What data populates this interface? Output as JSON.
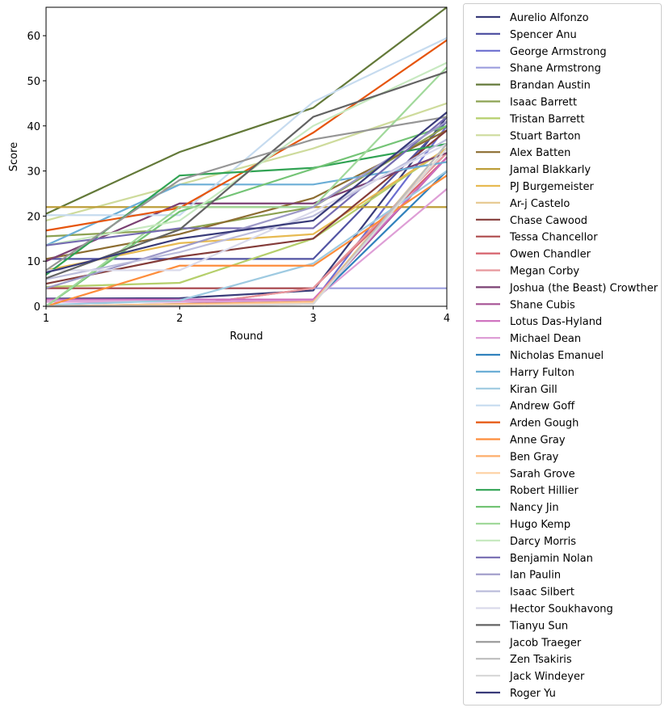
{
  "chart_data": {
    "type": "line",
    "xlabel": "Round",
    "ylabel": "Score",
    "xlim": [
      1,
      4
    ],
    "ylim": [
      0,
      66.3
    ],
    "x": [
      1,
      2,
      3,
      4
    ],
    "xticks": [
      "1",
      "2",
      "3",
      "4"
    ],
    "yticks": [
      "0",
      "10",
      "20",
      "30",
      "40",
      "50",
      "60"
    ],
    "grid": false,
    "legend_placement": "outside-right",
    "series": [
      {
        "name": "Aurelio Alfonzo",
        "color": "#393b79",
        "values": [
          1.7,
          1.8,
          3.5,
          42
        ]
      },
      {
        "name": "Spencer Anu",
        "color": "#5254a3",
        "values": [
          10.5,
          10.5,
          10.5,
          41
        ]
      },
      {
        "name": "George Armstrong",
        "color": "#6b6ecf",
        "values": [
          0,
          0,
          1,
          40
        ]
      },
      {
        "name": "Shane Armstrong",
        "color": "#9c9ede",
        "values": [
          4,
          4,
          4,
          4
        ]
      },
      {
        "name": "Brandan Austin",
        "color": "#637939",
        "values": [
          20.5,
          34.2,
          44,
          66.3
        ]
      },
      {
        "name": "Isaac Barrett",
        "color": "#8ca252",
        "values": [
          15.5,
          17,
          22,
          40
        ]
      },
      {
        "name": "Tristan Barrett",
        "color": "#b5cf6b",
        "values": [
          4.3,
          5.2,
          15,
          35
        ]
      },
      {
        "name": "Stuart Barton",
        "color": "#cedb9c",
        "values": [
          19,
          27,
          35,
          45
        ]
      },
      {
        "name": "Alex Batten",
        "color": "#8c6d31",
        "values": [
          10.5,
          16,
          24,
          39
        ]
      },
      {
        "name": "Jamal Blakkarly",
        "color": "#bd9e39",
        "values": [
          22,
          22,
          22,
          22
        ]
      },
      {
        "name": "PJ Burgemeister",
        "color": "#e7ba52",
        "values": [
          8,
          14,
          16,
          35
        ]
      },
      {
        "name": "Ar-j Castelo",
        "color": "#e7cb94",
        "values": [
          0,
          0.5,
          1,
          36
        ]
      },
      {
        "name": "Chase Cawood",
        "color": "#843c39",
        "values": [
          5,
          11,
          15,
          39
        ]
      },
      {
        "name": "Tessa Chancellor",
        "color": "#ad494a",
        "values": [
          4,
          4,
          4,
          34
        ]
      },
      {
        "name": "Owen Chandler",
        "color": "#d6616b",
        "values": [
          0,
          0,
          4,
          33
        ]
      },
      {
        "name": "Megan Corby",
        "color": "#e7969c",
        "values": [
          0,
          0,
          4,
          34
        ]
      },
      {
        "name": "Joshua (the Beast) Crowther",
        "color": "#7b4173",
        "values": [
          10,
          22.8,
          22.8,
          34
        ]
      },
      {
        "name": "Shane Cubis",
        "color": "#a55194",
        "values": [
          1,
          1,
          1,
          33
        ]
      },
      {
        "name": "Lotus Das-Hyland",
        "color": "#ce6dbd",
        "values": [
          1.5,
          1.5,
          1.5,
          33
        ]
      },
      {
        "name": "Michael Dean",
        "color": "#de9ed6",
        "values": [
          1,
          1,
          1.2,
          26
        ]
      },
      {
        "name": "Nicholas Emanuel",
        "color": "#3182bd",
        "values": [
          0,
          0.5,
          1,
          30
        ]
      },
      {
        "name": "Harry Fulton",
        "color": "#6baed6",
        "values": [
          13.5,
          27,
          27,
          32
        ]
      },
      {
        "name": "Kiran Gill",
        "color": "#9ecae1",
        "values": [
          0.3,
          1.3,
          9.5,
          30
        ]
      },
      {
        "name": "Andrew Goff",
        "color": "#c6dbef",
        "values": [
          20.2,
          20.2,
          45.3,
          59.5
        ]
      },
      {
        "name": "Arden Gough",
        "color": "#e6550d",
        "values": [
          16.8,
          21.8,
          38.5,
          59
        ]
      },
      {
        "name": "Anne Gray",
        "color": "#fd8d3c",
        "values": [
          0,
          9,
          9,
          29
        ]
      },
      {
        "name": "Ben Gray",
        "color": "#fdae6b",
        "values": [
          0,
          0.5,
          1,
          35
        ]
      },
      {
        "name": "Sarah Grove",
        "color": "#fdd0a2",
        "values": [
          0,
          0.3,
          0.8,
          35
        ]
      },
      {
        "name": "Robert Hillier",
        "color": "#31a354",
        "values": [
          7,
          29,
          30.7,
          36
        ]
      },
      {
        "name": "Nancy Jin",
        "color": "#74c476",
        "values": [
          0,
          21,
          30.5,
          40
        ]
      },
      {
        "name": "Hugo Kemp",
        "color": "#a1d99b",
        "values": [
          0,
          22,
          22,
          53
        ]
      },
      {
        "name": "Darcy Morris",
        "color": "#c7e9c0",
        "values": [
          13.5,
          19,
          40,
          54
        ]
      },
      {
        "name": "Benjamin Nolan",
        "color": "#756bb1",
        "values": [
          13.5,
          17.3,
          17.3,
          42
        ]
      },
      {
        "name": "Ian Paulin",
        "color": "#9e9ac8",
        "values": [
          4,
          13,
          22,
          41
        ]
      },
      {
        "name": "Isaac Silbert",
        "color": "#bcbddc",
        "values": [
          6,
          12,
          20,
          37
        ]
      },
      {
        "name": "Hector Soukhavong",
        "color": "#dadaeb",
        "values": [
          8,
          8,
          21,
          36
        ]
      },
      {
        "name": "Tianyu Sun",
        "color": "#636363",
        "values": [
          6.2,
          17,
          42,
          52
        ]
      },
      {
        "name": "Jacob Traeger",
        "color": "#969696",
        "values": [
          8,
          28,
          37,
          42
        ]
      },
      {
        "name": "Zen Tsakiris",
        "color": "#bdbdbd",
        "values": [
          0,
          0,
          0.5,
          36
        ]
      },
      {
        "name": "Jack Windeyer",
        "color": "#d9d9d9",
        "values": [
          0,
          0,
          0.5,
          35
        ]
      },
      {
        "name": "Roger Yu",
        "color": "#393b79",
        "values": [
          7.5,
          15,
          19,
          43
        ]
      }
    ]
  }
}
